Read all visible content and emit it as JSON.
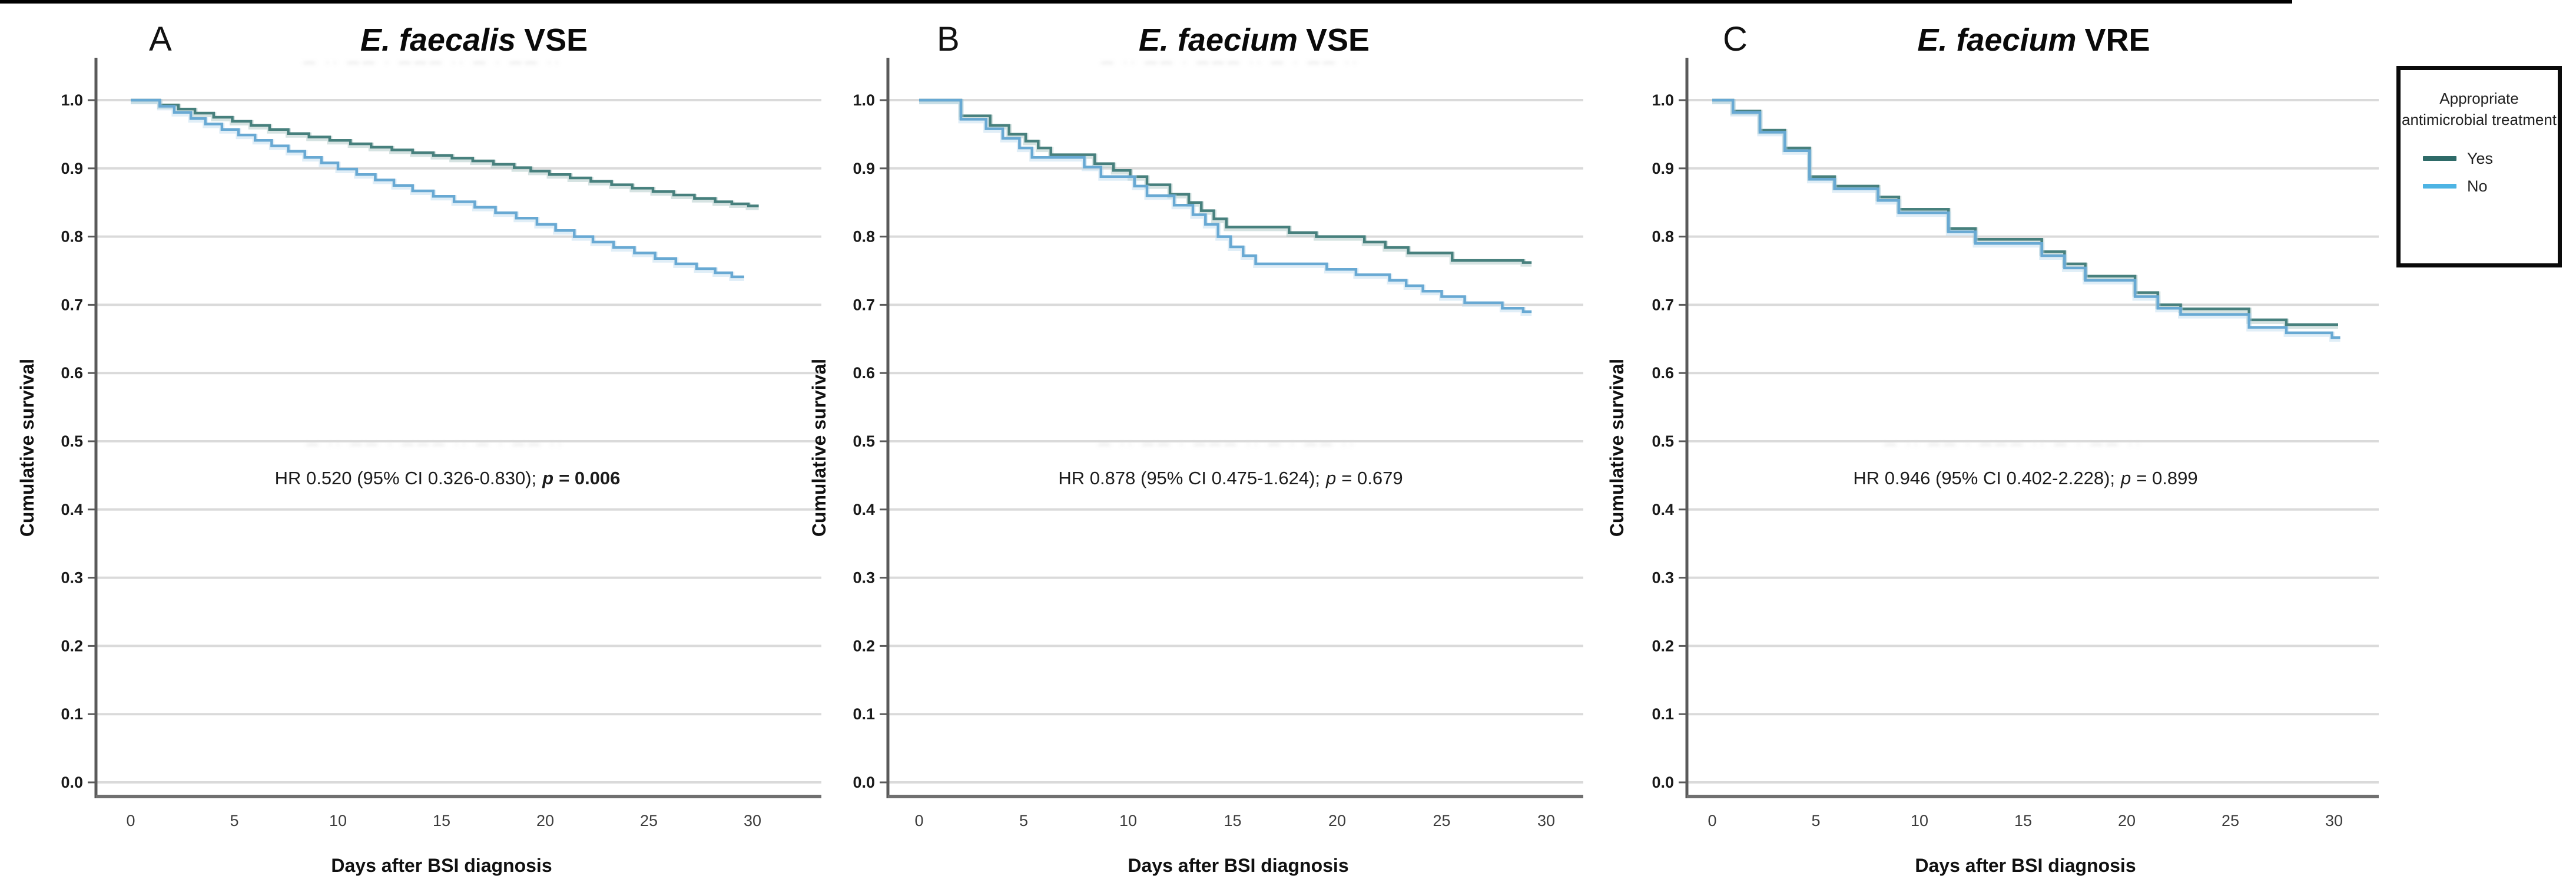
{
  "figure": {
    "description_note": "Kaplan-Meier cumulative survival curves",
    "grid_color": "#dadada",
    "y_axis_color": "#5a5a5a",
    "x_axis_color": "#707070",
    "background": "#ffffff",
    "artifact_pattern": "— ·· —— · ——— ·· — · —— ··"
  },
  "legend": {
    "title": "Appropriate antimicrobial treatment",
    "items": [
      {
        "label": "Yes",
        "color": "#2e6b68"
      },
      {
        "label": "No",
        "color": "#4db4e4"
      }
    ]
  },
  "chart_data": [
    {
      "type": "line",
      "subtype": "kaplan-meier-step",
      "panel_label": "A",
      "title_italic": "E. faecalis",
      "title_suffix": "VSE",
      "xlabel": "Days after BSI diagnosis",
      "ylabel": "Cumulative survival",
      "xticks": [
        0,
        5,
        10,
        15,
        20,
        25,
        30
      ],
      "yticks": [
        "1.0",
        "0.9",
        "0.8",
        "0.7",
        "0.6",
        "0.5",
        "0.4",
        "0.3",
        "0.2",
        "0.1",
        "0.0"
      ],
      "xlim": [
        0,
        33
      ],
      "ylim": [
        0.0,
        1.0
      ],
      "grid": true,
      "hr": {
        "prefix": "HR 0.520 (95% CI 0.326-0.830);",
        "p": "p",
        "rest": "= 0.006",
        "p_bold": true
      },
      "has_title_ghost": true,
      "has_hr_ghost": true,
      "series": [
        {
          "name": "Yes",
          "color": "#47807d",
          "halo": "#9dbdbb",
          "end": 30.3,
          "points": [
            [
              0,
              1
            ],
            [
              1.4,
              0.993
            ],
            [
              2.3,
              0.987
            ],
            [
              3.1,
              0.981
            ],
            [
              4,
              0.975
            ],
            [
              4.9,
              0.969
            ],
            [
              5.8,
              0.963
            ],
            [
              6.7,
              0.957
            ],
            [
              7.6,
              0.951
            ],
            [
              8.6,
              0.946
            ],
            [
              9.6,
              0.941
            ],
            [
              10.6,
              0.936
            ],
            [
              11.6,
              0.931
            ],
            [
              12.6,
              0.927
            ],
            [
              13.6,
              0.923
            ],
            [
              14.6,
              0.919
            ],
            [
              15.5,
              0.915
            ],
            [
              16.5,
              0.911
            ],
            [
              17.5,
              0.906
            ],
            [
              18.5,
              0.901
            ],
            [
              19.3,
              0.896
            ],
            [
              20.2,
              0.891
            ],
            [
              21.2,
              0.886
            ],
            [
              22.2,
              0.881
            ],
            [
              23.2,
              0.876
            ],
            [
              24.2,
              0.871
            ],
            [
              25.2,
              0.866
            ],
            [
              26.2,
              0.861
            ],
            [
              27.2,
              0.856
            ],
            [
              28.2,
              0.851
            ],
            [
              29,
              0.848
            ],
            [
              29.8,
              0.845
            ]
          ]
        },
        {
          "name": "No",
          "color": "#68a9d3",
          "halo": "#b5d7ec",
          "end": 29.6,
          "points": [
            [
              0,
              1
            ],
            [
              1.4,
              0.991
            ],
            [
              2.1,
              0.982
            ],
            [
              2.9,
              0.973
            ],
            [
              3.6,
              0.965
            ],
            [
              4.4,
              0.957
            ],
            [
              5.2,
              0.949
            ],
            [
              6,
              0.941
            ],
            [
              6.8,
              0.933
            ],
            [
              7.6,
              0.925
            ],
            [
              8.4,
              0.916
            ],
            [
              9.2,
              0.908
            ],
            [
              10,
              0.899
            ],
            [
              10.9,
              0.891
            ],
            [
              11.8,
              0.883
            ],
            [
              12.7,
              0.875
            ],
            [
              13.6,
              0.867
            ],
            [
              14.6,
              0.859
            ],
            [
              15.6,
              0.851
            ],
            [
              16.6,
              0.843
            ],
            [
              17.6,
              0.835
            ],
            [
              18.6,
              0.827
            ],
            [
              19.6,
              0.818
            ],
            [
              20.5,
              0.809
            ],
            [
              21.4,
              0.8
            ],
            [
              22.3,
              0.792
            ],
            [
              23.3,
              0.784
            ],
            [
              24.3,
              0.776
            ],
            [
              25.3,
              0.768
            ],
            [
              26.3,
              0.76
            ],
            [
              27.3,
              0.753
            ],
            [
              28.2,
              0.747
            ],
            [
              29,
              0.741
            ]
          ]
        }
      ]
    },
    {
      "type": "line",
      "subtype": "kaplan-meier-step",
      "panel_label": "B",
      "title_italic": "E. faecium",
      "title_suffix": "VSE",
      "xlabel": "Days after BSI diagnosis",
      "ylabel": "Cumulative survival",
      "xticks": [
        0,
        5,
        10,
        15,
        20,
        25,
        30
      ],
      "yticks": [
        "1.0",
        "0.9",
        "0.8",
        "0.7",
        "0.6",
        "0.5",
        "0.4",
        "0.3",
        "0.2",
        "0.1",
        "0.0"
      ],
      "xlim": [
        0,
        33
      ],
      "ylim": [
        0.0,
        1.0
      ],
      "grid": true,
      "hr": {
        "prefix": "HR 0.878 (95% CI 0.475-1.624);",
        "p": "p",
        "rest": "= 0.679",
        "p_bold": false
      },
      "has_title_ghost": true,
      "has_hr_ghost": true,
      "series": [
        {
          "name": "Yes",
          "color": "#47807d",
          "halo": "#9dbdbb",
          "end": 29.3,
          "points": [
            [
              0,
              1
            ],
            [
              2,
              0.977
            ],
            [
              3.4,
              0.963
            ],
            [
              4.3,
              0.95
            ],
            [
              5.1,
              0.94
            ],
            [
              5.7,
              0.93
            ],
            [
              6.3,
              0.92
            ],
            [
              8.4,
              0.907
            ],
            [
              9.3,
              0.897
            ],
            [
              10.1,
              0.888
            ],
            [
              10.9,
              0.876
            ],
            [
              12,
              0.862
            ],
            [
              12.9,
              0.85
            ],
            [
              13.5,
              0.838
            ],
            [
              14.1,
              0.826
            ],
            [
              14.7,
              0.814
            ],
            [
              17.7,
              0.806
            ],
            [
              19,
              0.8
            ],
            [
              21.3,
              0.792
            ],
            [
              22.3,
              0.784
            ],
            [
              23.4,
              0.776
            ],
            [
              25.5,
              0.765
            ],
            [
              28.9,
              0.762
            ]
          ]
        },
        {
          "name": "No",
          "color": "#68a9d3",
          "halo": "#b5d7ec",
          "end": 29.3,
          "points": [
            [
              0,
              1
            ],
            [
              2,
              0.972
            ],
            [
              3.2,
              0.958
            ],
            [
              4,
              0.944
            ],
            [
              4.8,
              0.93
            ],
            [
              5.4,
              0.916
            ],
            [
              7.9,
              0.902
            ],
            [
              8.7,
              0.888
            ],
            [
              10.3,
              0.874
            ],
            [
              10.9,
              0.86
            ],
            [
              12.2,
              0.846
            ],
            [
              13.1,
              0.832
            ],
            [
              13.7,
              0.818
            ],
            [
              14.3,
              0.8
            ],
            [
              14.9,
              0.785
            ],
            [
              15.5,
              0.772
            ],
            [
              16.1,
              0.76
            ],
            [
              19.5,
              0.752
            ],
            [
              20.9,
              0.744
            ],
            [
              22.5,
              0.736
            ],
            [
              23.3,
              0.728
            ],
            [
              24.1,
              0.72
            ],
            [
              25,
              0.712
            ],
            [
              26.1,
              0.703
            ],
            [
              27.9,
              0.695
            ],
            [
              28.9,
              0.69
            ]
          ]
        }
      ]
    },
    {
      "type": "line",
      "subtype": "kaplan-meier-step",
      "panel_label": "C",
      "title_italic": "E. faecium",
      "title_suffix": "VRE",
      "xlabel": "Days after BSI diagnosis",
      "ylabel": "Cumulative survival",
      "xticks": [
        0,
        5,
        10,
        15,
        20,
        25,
        30
      ],
      "yticks": [
        "1.0",
        "0.9",
        "0.8",
        "0.7",
        "0.6",
        "0.5",
        "0.4",
        "0.3",
        "0.2",
        "0.1",
        "0.0"
      ],
      "xlim": [
        0,
        33
      ],
      "ylim": [
        0.0,
        1.0
      ],
      "grid": true,
      "hr": {
        "prefix": "HR 0.946 (95% CI 0.402-2.228);",
        "p": "p",
        "rest": "= 0.899",
        "p_bold": false
      },
      "has_title_ghost": false,
      "has_hr_ghost": true,
      "series": [
        {
          "name": "Yes",
          "color": "#47807d",
          "halo": "#9dbdbb",
          "end": 30.2,
          "points": [
            [
              0,
              1
            ],
            [
              1,
              0.984
            ],
            [
              2.3,
              0.956
            ],
            [
              3.5,
              0.93
            ],
            [
              4.7,
              0.888
            ],
            [
              5.9,
              0.874
            ],
            [
              8,
              0.858
            ],
            [
              9,
              0.84
            ],
            [
              11.4,
              0.812
            ],
            [
              12.7,
              0.796
            ],
            [
              15.9,
              0.778
            ],
            [
              17,
              0.76
            ],
            [
              18,
              0.742
            ],
            [
              20.4,
              0.718
            ],
            [
              21.5,
              0.7
            ],
            [
              22.6,
              0.694
            ],
            [
              25.9,
              0.678
            ],
            [
              27.7,
              0.671
            ]
          ]
        },
        {
          "name": "No",
          "color": "#68a9d3",
          "halo": "#b5d7ec",
          "end": 30.3,
          "points": [
            [
              0,
              1
            ],
            [
              1,
              0.982
            ],
            [
              2.3,
              0.953
            ],
            [
              3.5,
              0.926
            ],
            [
              4.7,
              0.884
            ],
            [
              5.9,
              0.87
            ],
            [
              8,
              0.853
            ],
            [
              9,
              0.835
            ],
            [
              11.4,
              0.807
            ],
            [
              12.7,
              0.79
            ],
            [
              15.9,
              0.772
            ],
            [
              17,
              0.754
            ],
            [
              18,
              0.736
            ],
            [
              20.4,
              0.712
            ],
            [
              21.5,
              0.695
            ],
            [
              22.6,
              0.686
            ],
            [
              25.9,
              0.667
            ],
            [
              27.7,
              0.659
            ],
            [
              29.9,
              0.652
            ]
          ]
        }
      ]
    }
  ]
}
